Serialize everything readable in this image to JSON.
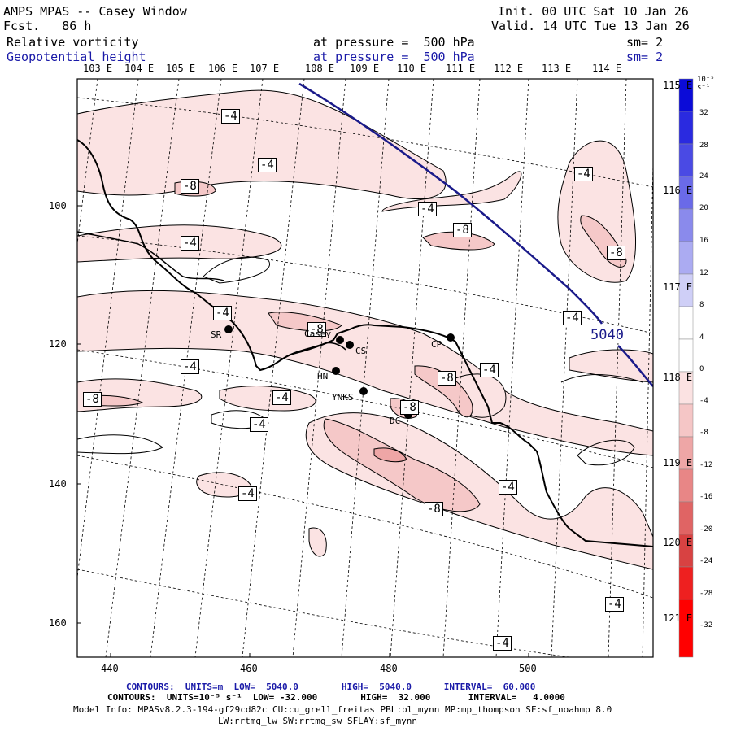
{
  "header": {
    "title": "AMPS MPAS -- Casey Window",
    "fcst": "Fcst.   86 h",
    "init": "Init. 00 UTC Sat 10 Jan 26",
    "valid": "Valid. 14 UTC Tue 13 Jan 26",
    "field1_name": "Relative vorticity",
    "field1_level": "at pressure =  500 hPa",
    "field1_sm": "sm= 2",
    "field2_name": "Geopotential height",
    "field2_level": "at pressure =  500 hPa",
    "field2_sm": "sm= 2"
  },
  "lon_labels_top": [
    "103 E",
    "104 E",
    "105 E",
    "106 E",
    "107 E",
    "108 E",
    "109 E",
    "110 E",
    "111 E",
    "112 E",
    "113 E",
    "114 E"
  ],
  "lon_labels_right": [
    "115 E",
    "116 E",
    "117 E",
    "118 E",
    "119 E",
    "120 E",
    "121 E"
  ],
  "x_ticks": [
    "440",
    "460",
    "480",
    "500"
  ],
  "y_ticks": [
    "100",
    "120",
    "140",
    "160"
  ],
  "colorbar": {
    "units": "10⁻⁵ s⁻¹",
    "labels": [
      "32",
      "28",
      "24",
      "20",
      "16",
      "12",
      "8",
      "4",
      "0",
      "-4",
      "-8",
      "-12",
      "-16",
      "-20",
      "-24",
      "-28",
      "-32"
    ],
    "colors": [
      "#0b0bd8",
      "#2a2ae0",
      "#4a4ae4",
      "#6a6ae8",
      "#8a8aec",
      "#ababf2",
      "#cfcff7",
      "#ffffff",
      "#ffffff",
      "#fbe2e2",
      "#f5c6c6",
      "#eea6a6",
      "#e88686",
      "#e06464",
      "#d84242",
      "#ee2020",
      "#ff0000"
    ]
  },
  "contour_labels": {
    "m4": "-4",
    "m8": "-8",
    "height": "5040"
  },
  "stations": {
    "sr": "SR",
    "casey": "Casey",
    "cs": "CS",
    "cp": "CP",
    "hn": "HN",
    "ynks": "YNKS",
    "dc": "DC"
  },
  "footer": {
    "line1": "CONTOURS:  UNITS=m  LOW=  5040.0        HIGH=  5040.0      INTERVAL=  60.000",
    "line2": "CONTOURS:  UNITS=10⁻⁵ s⁻¹  LOW= -32.000        HIGH=  32.000       INTERVAL=   4.0000",
    "line3": "Model Info: MPASv8.2.3-194-gf29cd82c CU:cu_grell_freitas PBL:bl_mynn MP:mp_thompson SF:sf_noahmp 8.0",
    "line4": "LW:rrtmg_lw SW:rrtmg_sw SFLAY:sf_mynn"
  }
}
